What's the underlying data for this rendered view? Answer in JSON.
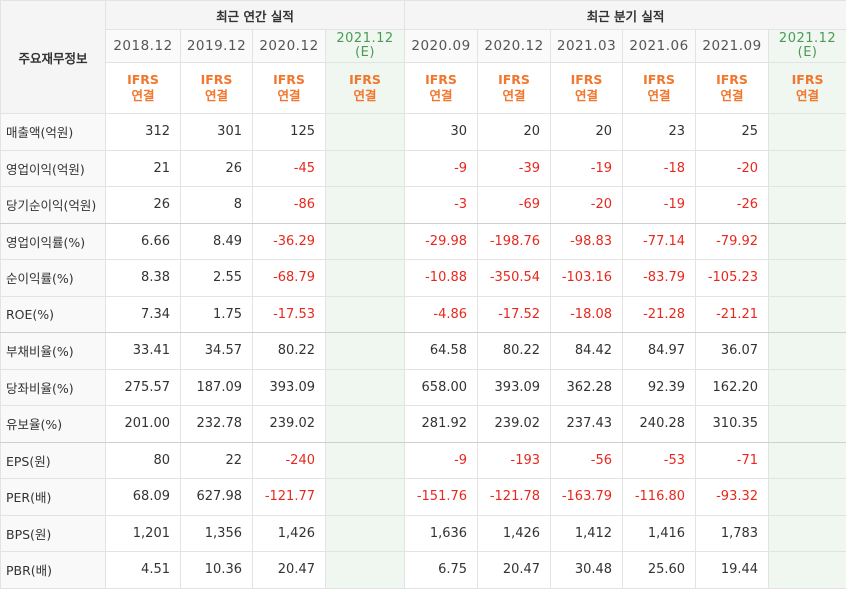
{
  "header": {
    "row_label": "주요재무정보",
    "annual_group": "최근 연간 실적",
    "quarter_group": "최근 분기 실적",
    "annual_periods": [
      {
        "label": "2018.12",
        "std": "IFRS",
        "type": "연결"
      },
      {
        "label": "2019.12",
        "std": "IFRS",
        "type": "연결"
      },
      {
        "label": "2020.12",
        "std": "IFRS",
        "type": "연결"
      },
      {
        "label": "2021.12",
        "sub": "(E)",
        "std": "IFRS",
        "type": "연결"
      }
    ],
    "quarter_periods": [
      {
        "label": "2020.09",
        "std": "IFRS",
        "type": "연결"
      },
      {
        "label": "2020.12",
        "std": "IFRS",
        "type": "연결"
      },
      {
        "label": "2021.03",
        "std": "IFRS",
        "type": "연결"
      },
      {
        "label": "2021.06",
        "std": "IFRS",
        "type": "연결"
      },
      {
        "label": "2021.09",
        "std": "IFRS",
        "type": "연결"
      },
      {
        "label": "2021.12",
        "sub": "(E)",
        "std": "IFRS",
        "type": "연결"
      }
    ]
  },
  "rows": [
    {
      "label": "매출액(억원)",
      "annual": [
        "312",
        "301",
        "125",
        ""
      ],
      "quarter": [
        "30",
        "20",
        "20",
        "23",
        "25",
        ""
      ]
    },
    {
      "label": "영업이익(억원)",
      "annual": [
        "21",
        "26",
        "-45",
        ""
      ],
      "quarter": [
        "-9",
        "-39",
        "-19",
        "-18",
        "-20",
        ""
      ]
    },
    {
      "label": "당기순이익(억원)",
      "annual": [
        "26",
        "8",
        "-86",
        ""
      ],
      "quarter": [
        "-3",
        "-69",
        "-20",
        "-19",
        "-26",
        ""
      ]
    },
    {
      "label": "영업이익률(%)",
      "annual": [
        "6.66",
        "8.49",
        "-36.29",
        ""
      ],
      "quarter": [
        "-29.98",
        "-198.76",
        "-98.83",
        "-77.14",
        "-79.92",
        ""
      ]
    },
    {
      "label": "순이익률(%)",
      "annual": [
        "8.38",
        "2.55",
        "-68.79",
        ""
      ],
      "quarter": [
        "-10.88",
        "-350.54",
        "-103.16",
        "-83.79",
        "-105.23",
        ""
      ]
    },
    {
      "label": "ROE(%)",
      "annual": [
        "7.34",
        "1.75",
        "-17.53",
        ""
      ],
      "quarter": [
        "-4.86",
        "-17.52",
        "-18.08",
        "-21.28",
        "-21.21",
        ""
      ]
    },
    {
      "label": "부채비율(%)",
      "annual": [
        "33.41",
        "34.57",
        "80.22",
        ""
      ],
      "quarter": [
        "64.58",
        "80.22",
        "84.42",
        "84.97",
        "36.07",
        ""
      ]
    },
    {
      "label": "당좌비율(%)",
      "annual": [
        "275.57",
        "187.09",
        "393.09",
        ""
      ],
      "quarter": [
        "658.00",
        "393.09",
        "362.28",
        "92.39",
        "162.20",
        ""
      ]
    },
    {
      "label": "유보율(%)",
      "annual": [
        "201.00",
        "232.78",
        "239.02",
        ""
      ],
      "quarter": [
        "281.92",
        "239.02",
        "237.43",
        "240.28",
        "310.35",
        ""
      ]
    },
    {
      "label": "EPS(원)",
      "annual": [
        "80",
        "22",
        "-240",
        ""
      ],
      "quarter": [
        "-9",
        "-193",
        "-56",
        "-53",
        "-71",
        ""
      ]
    },
    {
      "label": "PER(배)",
      "annual": [
        "68.09",
        "627.98",
        "-121.77",
        ""
      ],
      "quarter": [
        "-151.76",
        "-121.78",
        "-163.79",
        "-116.80",
        "-93.32",
        ""
      ]
    },
    {
      "label": "BPS(원)",
      "annual": [
        "1,201",
        "1,356",
        "1,426",
        ""
      ],
      "quarter": [
        "1,636",
        "1,426",
        "1,412",
        "1,416",
        "1,783",
        ""
      ]
    },
    {
      "label": "PBR(배)",
      "annual": [
        "4.51",
        "10.36",
        "20.47",
        ""
      ],
      "quarter": [
        "6.75",
        "20.47",
        "30.48",
        "25.60",
        "19.44",
        ""
      ]
    }
  ],
  "colors": {
    "negative": "#e8281e",
    "ifrs": "#f0772d",
    "estimate": "#4a9a56",
    "estimate_bg": "#f0f7f0"
  }
}
